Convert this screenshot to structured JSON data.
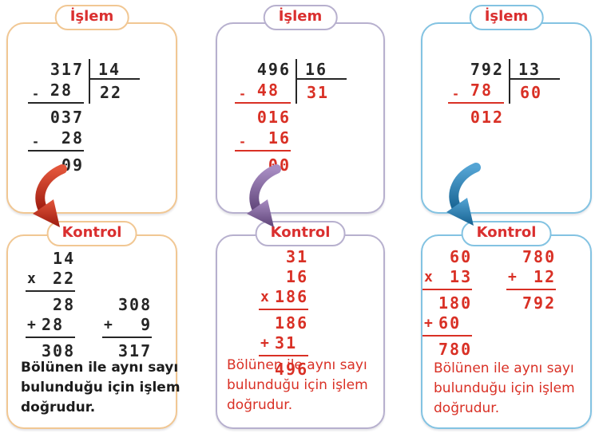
{
  "theme": {
    "ink": "#262626",
    "red": "#da2f2f",
    "background": "#ffffff"
  },
  "columns": [
    {
      "accent": "#f1c793",
      "arrow_icon": "curved-down-right-arrow",
      "arrow_colors": [
        "#e2553b",
        "#9c1a0e"
      ],
      "islem_label": "İşlem",
      "kontrol_label": "Kontrol",
      "division": {
        "dividend": "317",
        "divisor": "14",
        "quotient": "22",
        "step_color": "#262626",
        "steps": [
          {
            "v": "28",
            "sign": "-",
            "pad": 1,
            "ul": true
          },
          {
            "v": "037"
          },
          {
            "v": "28",
            "sign": "-",
            "ul": true
          },
          {
            "v": "09"
          }
        ]
      },
      "kontrol_color": "#262626",
      "kontrol_blocks": [
        {
          "rows": [
            {
              "v": "14"
            },
            {
              "v": "22",
              "sign": "x",
              "ul": true
            },
            {
              "v": "28"
            },
            {
              "v": "28",
              "sign": "+",
              "pad": 1,
              "ul": true
            },
            {
              "v": "308"
            }
          ]
        },
        {
          "rows": [
            {
              "v": "308"
            },
            {
              "v": "9",
              "sign": "+",
              "ul": true
            },
            {
              "v": "317"
            }
          ]
        }
      ],
      "note": "Bölünen ile aynı sayı bulunduğu için işlem doğrudur.",
      "note_color": "#1c1c1c"
    },
    {
      "accent": "#b7b0ce",
      "arrow_icon": "curved-down-right-arrow",
      "arrow_colors": [
        "#a78cc2",
        "#5e4377"
      ],
      "islem_label": "İşlem",
      "kontrol_label": "Kontrol",
      "division": {
        "dividend": "496",
        "divisor": "16",
        "quotient": "31",
        "step_color": "#d93025",
        "steps": [
          {
            "v": "48",
            "sign": "-",
            "pad": 1,
            "ul": true
          },
          {
            "v": "016"
          },
          {
            "v": "16",
            "sign": "-",
            "ul": true
          },
          {
            "v": "00"
          }
        ]
      },
      "kontrol_color": "#d93025",
      "kontrol_blocks": [
        {
          "rows": [
            {
              "v": "31"
            },
            {
              "v": "16"
            },
            {
              "v": "186",
              "sign": "x",
              "ul": true
            },
            {
              "v": "186"
            },
            {
              "v": "31",
              "sign": "+",
              "pad": 1,
              "ul": true
            },
            {
              "v": "496"
            }
          ]
        }
      ],
      "note": "Bölünen ile aynı sayı bulunduğu için işlem doğrudur.",
      "note_color": "#d93025"
    },
    {
      "accent": "#83c3e2",
      "arrow_icon": "curved-down-right-arrow",
      "arrow_colors": [
        "#54a4d4",
        "#176291"
      ],
      "islem_label": "İşlem",
      "kontrol_label": "Kontrol",
      "division": {
        "dividend": "792",
        "divisor": "13",
        "quotient": "60",
        "step_color": "#d93025",
        "steps": [
          {
            "v": "78",
            "sign": "-",
            "pad": 1,
            "ul": true
          },
          {
            "v": "012"
          }
        ]
      },
      "kontrol_color": "#d93025",
      "kontrol_blocks": [
        {
          "rows": [
            {
              "v": "60"
            },
            {
              "v": "13",
              "sign": "x",
              "ul": true
            },
            {
              "v": "180"
            },
            {
              "v": "60",
              "sign": "+",
              "pad": 1,
              "ul": true
            },
            {
              "v": "780"
            }
          ]
        },
        {
          "rows": [
            {
              "v": "780"
            },
            {
              "v": "12",
              "sign": "+",
              "ul": true
            },
            {
              "v": "792"
            }
          ]
        }
      ],
      "note": "Bölünen ile aynı sayı bulunduğu için işlem doğrudur.",
      "note_color": "#d93025"
    }
  ]
}
